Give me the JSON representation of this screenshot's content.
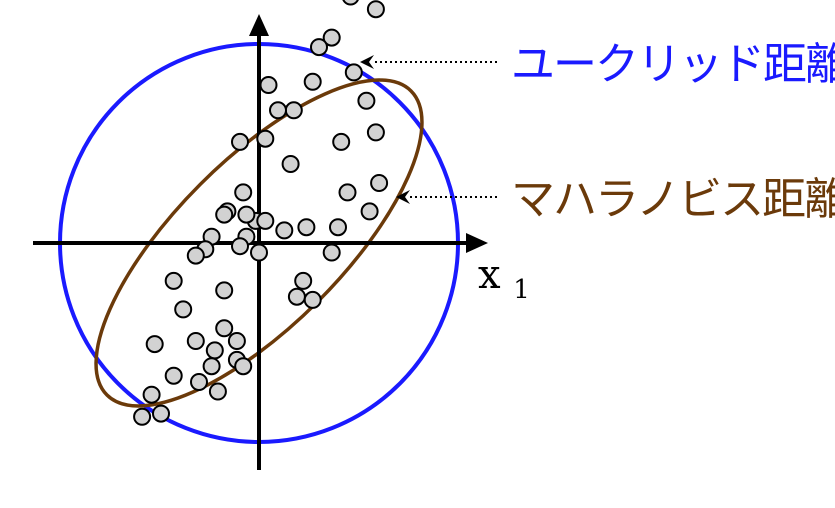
{
  "labels": {
    "euclidean": "ユークリッド距離",
    "mahalanobis": "マハラノビス距離",
    "x_axis_base": "x",
    "x_axis_sub": "1"
  },
  "colors": {
    "euclidean": "#1a1aff",
    "mahalanobis": "#6b3a0a",
    "point_fill": "#d2d2d2",
    "axis": "#000000"
  },
  "icons": {
    "y_arrow": "arrowhead-up-icon",
    "x_arrow": "arrowhead-right-icon",
    "pointer_arrow": "arrowhead-left-icon"
  },
  "chart_data": {
    "type": "scatter",
    "points": [
      [
        0.29,
        0.78
      ],
      [
        0.23,
        0.65
      ],
      [
        0.37,
        0.74
      ],
      [
        0.3,
        0.54
      ],
      [
        0.34,
        0.45
      ],
      [
        0.37,
        0.35
      ],
      [
        0.26,
        0.32
      ],
      [
        0.38,
        0.19
      ],
      [
        0.35,
        0.1
      ],
      [
        0.28,
        0.16
      ],
      [
        0.19,
        0.62
      ],
      [
        0.11,
        0.42
      ],
      [
        0.03,
        0.5
      ],
      [
        0.17,
        0.51
      ],
      [
        0.06,
        0.42
      ],
      [
        0.1,
        0.25
      ],
      [
        0.02,
        0.33
      ],
      [
        0.25,
        0.05
      ],
      [
        -0.06,
        0.32
      ],
      [
        -0.05,
        0.16
      ],
      [
        -0.1,
        0.1
      ],
      [
        -0.04,
        0.02
      ],
      [
        -0.01,
        0.07
      ],
      [
        -0.04,
        0.09
      ],
      [
        -0.11,
        0.09
      ],
      [
        0.02,
        0.07
      ],
      [
        0.08,
        0.04
      ],
      [
        0.15,
        0.05
      ],
      [
        0.23,
        -0.03
      ],
      [
        0.0,
        -0.03
      ],
      [
        0.14,
        -0.12
      ],
      [
        0.12,
        -0.17
      ],
      [
        0.17,
        -0.18
      ],
      [
        -0.06,
        -0.01
      ],
      [
        -0.15,
        0.02
      ],
      [
        -0.17,
        -0.02
      ],
      [
        -0.2,
        -0.04
      ],
      [
        -0.11,
        -0.15
      ],
      [
        -0.24,
        -0.21
      ],
      [
        -0.27,
        -0.12
      ],
      [
        -0.2,
        -0.31
      ],
      [
        -0.11,
        -0.27
      ],
      [
        -0.14,
        -0.34
      ],
      [
        -0.07,
        -0.37
      ],
      [
        -0.27,
        -0.42
      ],
      [
        -0.33,
        -0.32
      ],
      [
        -0.34,
        -0.48
      ],
      [
        -0.15,
        -0.39
      ],
      [
        -0.13,
        -0.47
      ],
      [
        -0.19,
        -0.44
      ],
      [
        -0.31,
        -0.54
      ],
      [
        -0.37,
        -0.55
      ],
      [
        -0.05,
        -0.39
      ],
      [
        -0.07,
        -0.31
      ]
    ],
    "xlabel": "x1",
    "ylabel": ""
  }
}
